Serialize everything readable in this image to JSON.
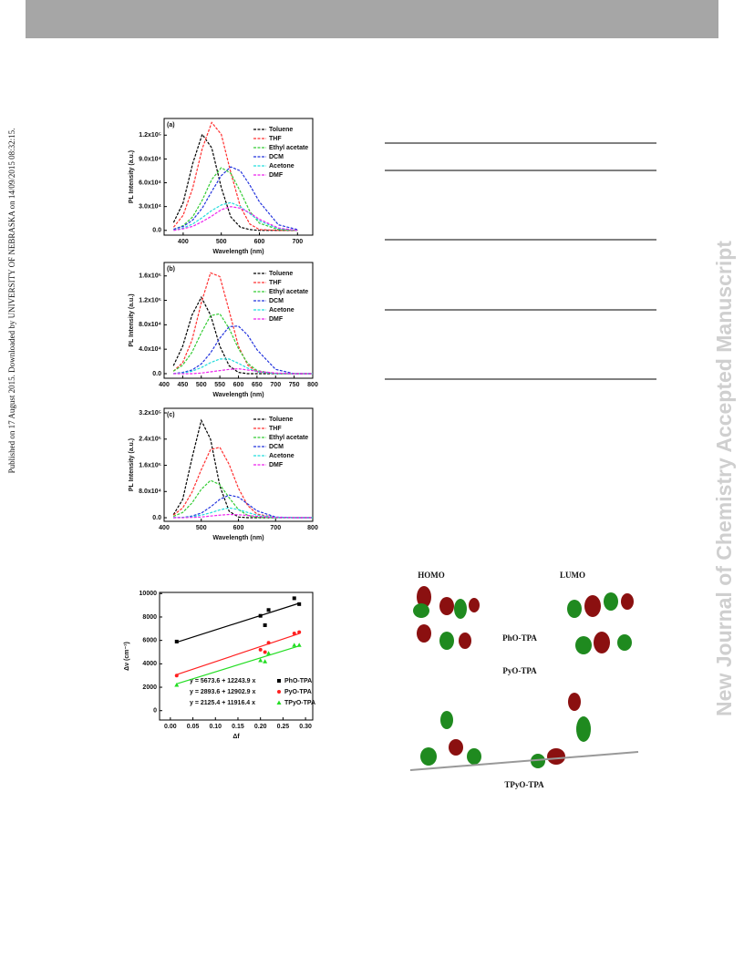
{
  "side_note": "Published on 17 August 2015. Downloaded by UNIVERSITY OF NEBRASKA on 14/09/2015 08:32:15.",
  "watermark": "New Journal of Chemistry Accepted Manuscript",
  "figure": {
    "headers": [
      "HOMO",
      "LUMO"
    ],
    "molecules": [
      "PhO-TPA",
      "PyO-TPA",
      "TPyO-TPA"
    ]
  },
  "chart_data": [
    {
      "type": "line",
      "label": "(a)",
      "x_label": "Wavelength (nm)",
      "y_label": "PL Intensity (a.u.)",
      "x": [
        375,
        400,
        425,
        450,
        475,
        500,
        525,
        550,
        575,
        600,
        650,
        700
      ],
      "xlim": [
        350,
        740
      ],
      "xticks": [
        400,
        500,
        600,
        700
      ],
      "ylim": [
        -6000,
        141000
      ],
      "yticks": [
        {
          "value": 0,
          "label": "0.0"
        },
        {
          "value": 30000,
          "label": "3.0x10⁴"
        },
        {
          "value": 60000,
          "label": "6.0x10⁴"
        },
        {
          "value": 90000,
          "label": "9.0x10⁴"
        },
        {
          "value": 120000,
          "label": "1.2x10⁵"
        }
      ],
      "series": [
        {
          "name": "Toluene",
          "color": "#000000",
          "values": [
            10000,
            35000,
            84000,
            121000,
            104000,
            54000,
            17000,
            4000,
            1000,
            0,
            0,
            0
          ]
        },
        {
          "name": "THF",
          "color": "#ff3030",
          "values": [
            4000,
            19000,
            53000,
            103000,
            136000,
            121000,
            73000,
            30000,
            8000,
            1000,
            0,
            0
          ]
        },
        {
          "name": "Ethyl acetate",
          "color": "#33cc33",
          "values": [
            1000,
            6000,
            17000,
            38000,
            64000,
            79000,
            72000,
            49000,
            24000,
            9000,
            1000,
            0
          ]
        },
        {
          "name": "DCM",
          "color": "#2233dd",
          "values": [
            1500,
            5000,
            13000,
            28000,
            49000,
            69000,
            80000,
            75000,
            57000,
            36000,
            7000,
            1000
          ]
        },
        {
          "name": "Acetone",
          "color": "#22dddd",
          "values": [
            0,
            3000,
            8000,
            16000,
            25000,
            32000,
            35000,
            30000,
            21000,
            12000,
            2000,
            0
          ]
        },
        {
          "name": "DMF",
          "color": "#ee22ee",
          "values": [
            0,
            2000,
            5000,
            11000,
            18000,
            26000,
            30000,
            28000,
            22000,
            14000,
            3000,
            0
          ]
        }
      ]
    },
    {
      "type": "line",
      "label": "(b)",
      "x_label": "Wavelength (nm)",
      "y_label": "PL Intensity (a.u.)",
      "x": [
        425,
        450,
        475,
        500,
        525,
        550,
        575,
        600,
        625,
        650,
        700,
        750,
        800
      ],
      "xlim": [
        400,
        800
      ],
      "xticks": [
        400,
        450,
        500,
        550,
        600,
        650,
        700,
        750,
        800
      ],
      "ylim": [
        -7500,
        182000
      ],
      "yticks": [
        {
          "value": 0,
          "label": "0.0"
        },
        {
          "value": 40000,
          "label": "4.0x10⁴"
        },
        {
          "value": 80000,
          "label": "8.0x10⁴"
        },
        {
          "value": 120000,
          "label": "1.2x10⁵"
        },
        {
          "value": 160000,
          "label": "1.6x10⁵"
        }
      ],
      "series": [
        {
          "name": "Toluene",
          "color": "#000000",
          "values": [
            13000,
            45000,
            96000,
            125000,
            96000,
            45000,
            13000,
            2000,
            0,
            0,
            0,
            0,
            0
          ]
        },
        {
          "name": "THF",
          "color": "#ff3030",
          "values": [
            4000,
            18000,
            55000,
            116000,
            165000,
            159000,
            103000,
            45000,
            14000,
            3000,
            0,
            0,
            0
          ]
        },
        {
          "name": "Ethyl acetate",
          "color": "#33cc33",
          "values": [
            4000,
            14000,
            35000,
            67000,
            95000,
            98000,
            74000,
            41000,
            17000,
            5000,
            0,
            0,
            0
          ]
        },
        {
          "name": "DCM",
          "color": "#2233dd",
          "values": [
            0,
            2000,
            6000,
            16000,
            34000,
            58000,
            77000,
            78000,
            63000,
            39000,
            7000,
            0,
            0
          ]
        },
        {
          "name": "Acetone",
          "color": "#22dddd",
          "values": [
            0,
            1000,
            4000,
            10000,
            18000,
            24000,
            24000,
            17000,
            9000,
            3000,
            0,
            0,
            0
          ]
        },
        {
          "name": "DMF",
          "color": "#ee22ee",
          "values": [
            0,
            0,
            0,
            1000,
            3000,
            5000,
            7000,
            8000,
            6000,
            4000,
            1000,
            0,
            0
          ]
        }
      ]
    },
    {
      "type": "line",
      "label": "(c)",
      "x_label": "Wavelength (nm)",
      "y_label": "PL Intensity (a.u.)",
      "x": [
        425,
        450,
        475,
        500,
        525,
        550,
        575,
        600,
        625,
        650,
        700,
        750,
        800
      ],
      "xlim": [
        400,
        800
      ],
      "xticks": [
        400,
        500,
        600,
        700,
        800
      ],
      "ylim": [
        -11000,
        334000
      ],
      "yticks": [
        {
          "value": 0,
          "label": "0.0"
        },
        {
          "value": 80000,
          "label": "8.0x10⁴"
        },
        {
          "value": 160000,
          "label": "1.6x10⁵"
        },
        {
          "value": 240000,
          "label": "2.4x10⁵"
        },
        {
          "value": 320000,
          "label": "3.2x10⁵"
        }
      ],
      "series": [
        {
          "name": "Toluene",
          "color": "#000000",
          "values": [
            9000,
            56000,
            182000,
            297000,
            240000,
            97000,
            20000,
            2000,
            0,
            0,
            0,
            0,
            0
          ]
        },
        {
          "name": "THF",
          "color": "#ff3030",
          "values": [
            8000,
            30000,
            78000,
            147000,
            208000,
            215000,
            163000,
            90000,
            37000,
            11000,
            1000,
            0,
            0
          ]
        },
        {
          "name": "Ethyl acetate",
          "color": "#33cc33",
          "values": [
            4000,
            16000,
            45000,
            87000,
            114000,
            101000,
            61000,
            25000,
            7000,
            1000,
            0,
            0,
            0
          ]
        },
        {
          "name": "DCM",
          "color": "#2233dd",
          "values": [
            0,
            1000,
            5000,
            14000,
            33000,
            56000,
            69000,
            63000,
            42000,
            21000,
            2000,
            0,
            0
          ]
        },
        {
          "name": "Acetone",
          "color": "#22dddd",
          "values": [
            0,
            1000,
            3000,
            8000,
            15000,
            24000,
            30000,
            25000,
            16000,
            8000,
            1000,
            0,
            0
          ]
        },
        {
          "name": "DMF",
          "color": "#ee22ee",
          "values": [
            0,
            0,
            1000,
            2000,
            5000,
            8000,
            10000,
            9000,
            7000,
            4000,
            1000,
            0,
            0
          ]
        }
      ]
    },
    {
      "type": "scatter",
      "x_label": "Δf",
      "y_label": "Δν (cm⁻¹)",
      "xlim": [
        -0.024,
        0.316
      ],
      "xticks": [
        {
          "value": 0,
          "label": "0.00"
        },
        {
          "value": 0.05,
          "label": "0.05"
        },
        {
          "value": 0.1,
          "label": "0.10"
        },
        {
          "value": 0.15,
          "label": "0.15"
        },
        {
          "value": 0.2,
          "label": "0.20"
        },
        {
          "value": 0.25,
          "label": "0.25"
        },
        {
          "value": 0.3,
          "label": "0.30"
        }
      ],
      "ylim": [
        -800,
        10100
      ],
      "yticks": [
        0,
        2000,
        4000,
        6000,
        8000,
        10000
      ],
      "series": [
        {
          "name": "PhO-TPA",
          "color": "#000000",
          "marker": "square",
          "equation": "y = 5673.6 + 12243.9 x",
          "fit": {
            "intercept": 5673.6,
            "slope": 12243.9
          },
          "x": [
            0.014,
            0.2,
            0.21,
            0.218,
            0.275,
            0.286
          ],
          "values": [
            5900,
            8100,
            7300,
            8600,
            9600,
            9100
          ]
        },
        {
          "name": "PyO-TPA",
          "color": "#ff2020",
          "marker": "circle",
          "equation": "y = 2893.6 + 12902.9 x",
          "fit": {
            "intercept": 2893.6,
            "slope": 12902.9
          },
          "x": [
            0.014,
            0.2,
            0.21,
            0.218,
            0.275,
            0.286
          ],
          "values": [
            3000,
            5200,
            5000,
            5800,
            6600,
            6700
          ]
        },
        {
          "name": "TPyO-TPA",
          "color": "#22dd22",
          "marker": "triangle",
          "equation": "y = 2125.4 + 11916.4 x",
          "fit": {
            "intercept": 2125.4,
            "slope": 11916.4
          },
          "x": [
            0.014,
            0.2,
            0.21,
            0.218,
            0.275,
            0.286
          ],
          "values": [
            2200,
            4300,
            4200,
            4900,
            5600,
            5600
          ]
        }
      ]
    }
  ]
}
